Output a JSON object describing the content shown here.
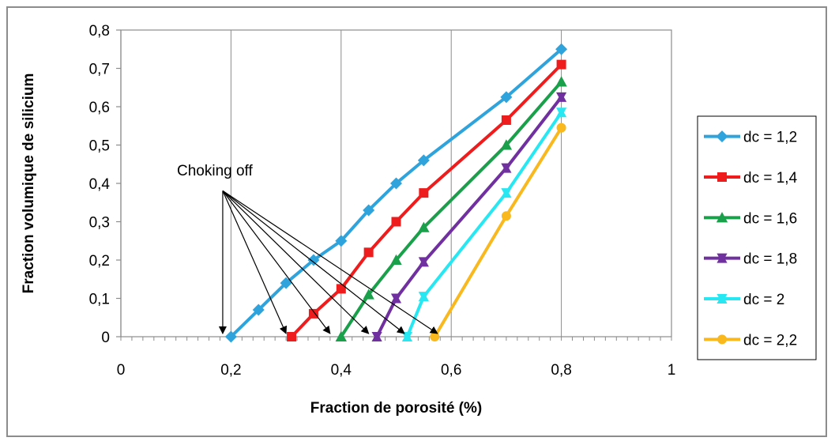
{
  "chart_data": {
    "type": "line",
    "title": "",
    "xlabel": "Fraction de porosité (%)",
    "ylabel": "Fraction volumique de silicium",
    "xlim": [
      0,
      1
    ],
    "ylim": [
      0,
      0.8
    ],
    "x_ticks": [
      "0",
      "0,2",
      "0,4",
      "0,6",
      "0,8",
      "1"
    ],
    "y_ticks": [
      "0",
      "0,1",
      "0,2",
      "0,3",
      "0,4",
      "0,5",
      "0,6",
      "0,7",
      "0,8"
    ],
    "grid": "vertical",
    "legend_position": "right",
    "annotation": {
      "text": "Choking off",
      "source": [
        0.185,
        0.36
      ],
      "targets": [
        [
          0.185,
          0
        ],
        [
          0.3,
          0
        ],
        [
          0.38,
          0
        ],
        [
          0.45,
          0
        ],
        [
          0.515,
          0
        ],
        [
          0.575,
          0
        ]
      ]
    },
    "series": [
      {
        "name": "dc = 1,2",
        "color": "#2ea3dc",
        "marker": "diamond",
        "x": [
          0.2,
          0.25,
          0.3,
          0.35,
          0.4,
          0.45,
          0.5,
          0.55,
          0.7,
          0.8
        ],
        "y": [
          0.0,
          0.07,
          0.14,
          0.2,
          0.25,
          0.33,
          0.4,
          0.46,
          0.625,
          0.75
        ]
      },
      {
        "name": "dc = 1,4",
        "color": "#ee1c1c",
        "marker": "square",
        "x": [
          0.31,
          0.35,
          0.4,
          0.45,
          0.5,
          0.55,
          0.7,
          0.8
        ],
        "y": [
          0.0,
          0.06,
          0.125,
          0.22,
          0.3,
          0.375,
          0.565,
          0.71
        ]
      },
      {
        "name": "dc = 1,6",
        "color": "#1aa04a",
        "marker": "triangle",
        "x": [
          0.4,
          0.45,
          0.5,
          0.55,
          0.7,
          0.8
        ],
        "y": [
          0.0,
          0.11,
          0.2,
          0.285,
          0.5,
          0.665
        ]
      },
      {
        "name": "dc = 1,8",
        "color": "#7030a0",
        "marker": "triangle-down",
        "x": [
          0.465,
          0.5,
          0.55,
          0.7,
          0.8
        ],
        "y": [
          0.0,
          0.1,
          0.195,
          0.44,
          0.625
        ]
      },
      {
        "name": "dc = 2",
        "color": "#27e8f2",
        "marker": "triangle-down",
        "x": [
          0.52,
          0.55,
          0.7,
          0.8
        ],
        "y": [
          0.0,
          0.105,
          0.375,
          0.585
        ]
      },
      {
        "name": "dc = 2,2",
        "color": "#f8b81e",
        "marker": "circle",
        "x": [
          0.57,
          0.7,
          0.8
        ],
        "y": [
          0.0,
          0.315,
          0.545
        ]
      }
    ]
  }
}
